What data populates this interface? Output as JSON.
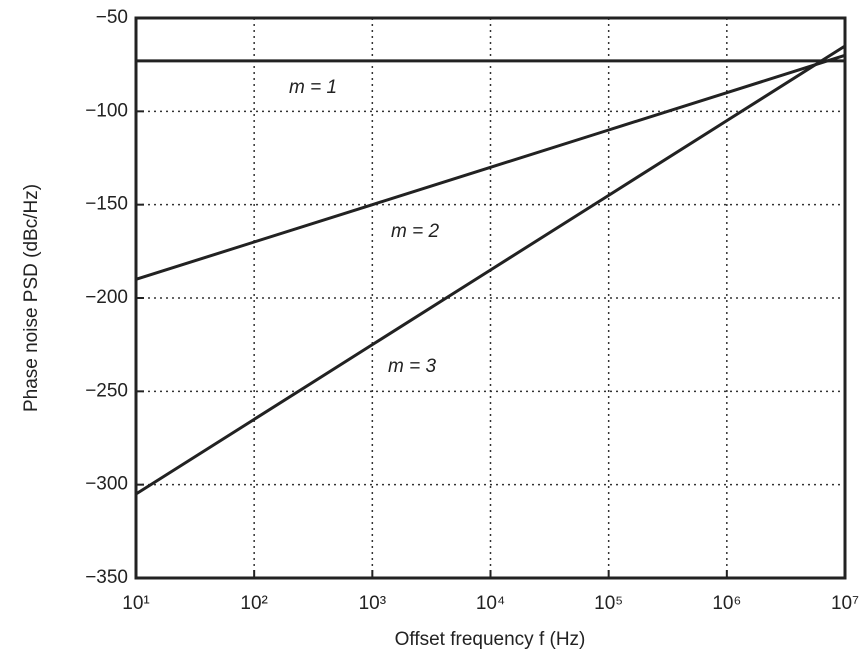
{
  "chart_data": {
    "type": "line",
    "xlabel": "Offset frequency f (Hz)",
    "ylabel": "Phase noise PSD (dBc/Hz)",
    "log_x": true,
    "grid": true,
    "x": [
      10,
      100,
      1000,
      10000,
      100000,
      1000000,
      10000000
    ],
    "series": [
      {
        "name": "m = 1",
        "color": "#222222",
        "values": [
          -73,
          -73,
          -73,
          -73,
          -73,
          -73,
          -73
        ]
      },
      {
        "name": "m = 2",
        "color": "#222222",
        "values": [
          -190,
          -170,
          -150,
          -130,
          -110,
          -90,
          -70
        ]
      },
      {
        "name": "m = 3",
        "color": "#222222",
        "values": [
          -305,
          -265,
          -225,
          -185,
          -145,
          -105,
          -65
        ]
      }
    ],
    "xlim": [
      10,
      10000000
    ],
    "xticks": [
      {
        "value": 10,
        "label": "10¹"
      },
      {
        "value": 100,
        "label": "10²"
      },
      {
        "value": 1000,
        "label": "10³"
      },
      {
        "value": 10000,
        "label": "10⁴"
      },
      {
        "value": 100000,
        "label": "10⁵"
      },
      {
        "value": 1000000,
        "label": "10⁶"
      },
      {
        "value": 10000000,
        "label": "10⁷"
      }
    ],
    "ylim": [
      -350,
      -50
    ],
    "yticks": [
      {
        "value": -350,
        "label": "−350"
      },
      {
        "value": -300,
        "label": "−300"
      },
      {
        "value": -250,
        "label": "−250"
      },
      {
        "value": -200,
        "label": "−200"
      },
      {
        "value": -150,
        "label": "−150"
      },
      {
        "value": -100,
        "label": "−100"
      },
      {
        "value": -50,
        "label": "−50"
      }
    ]
  }
}
